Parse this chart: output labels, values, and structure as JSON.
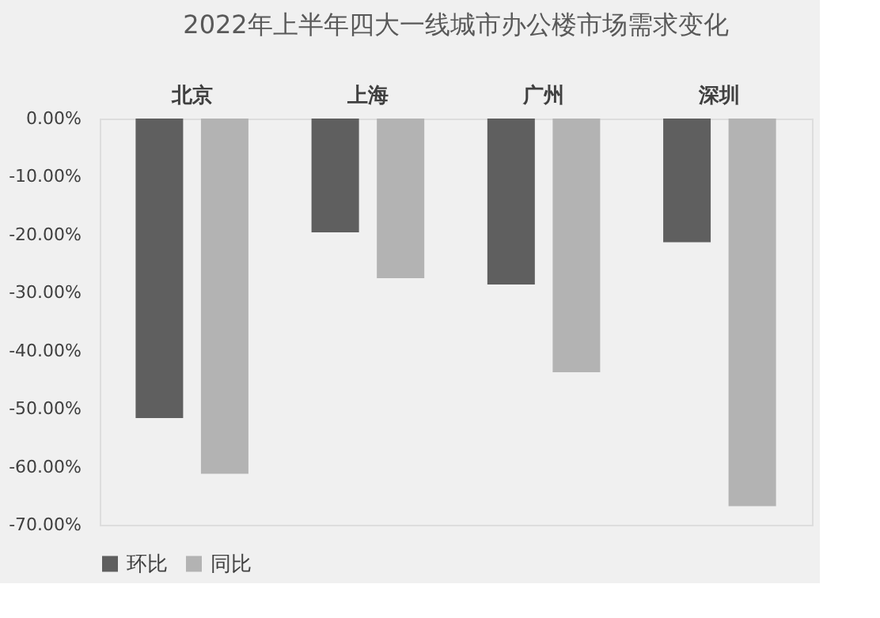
{
  "chart_data": {
    "type": "bar",
    "title": "2022年上半年四大一线城市办公楼市场需求变化",
    "categories": [
      "北京",
      "上海",
      "广州",
      "深圳"
    ],
    "series": [
      {
        "name": "环比",
        "color": "#5f5f5f",
        "values": [
          -51.6,
          -19.6,
          -28.6,
          -21.3
        ]
      },
      {
        "name": "同比",
        "color": "#b3b3b3",
        "values": [
          -61.2,
          -27.5,
          -43.7,
          -66.8
        ]
      }
    ],
    "ylim": [
      -70,
      0
    ],
    "yticks": [
      {
        "value": 0,
        "label": "0.00%"
      },
      {
        "value": -10,
        "label": "-10.00%"
      },
      {
        "value": -20,
        "label": "-20.00%"
      },
      {
        "value": -30,
        "label": "-30.00%"
      },
      {
        "value": -40,
        "label": "-40.00%"
      },
      {
        "value": -50,
        "label": "-50.00%"
      },
      {
        "value": -60,
        "label": "-60.00%"
      },
      {
        "value": -70,
        "label": "-70.00%"
      }
    ],
    "grid": false,
    "legend": "bottom"
  }
}
